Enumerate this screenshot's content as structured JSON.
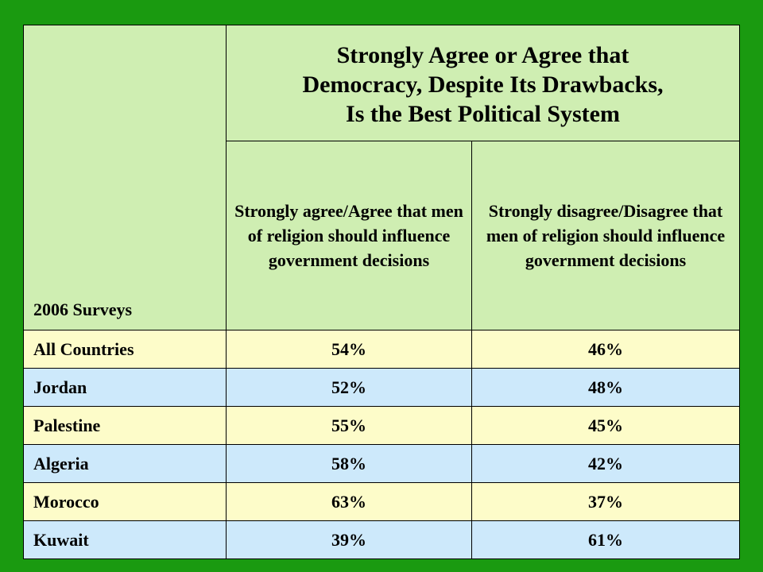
{
  "table": {
    "survey_label": "2006 Surveys",
    "main_title_lines": [
      "Strongly Agree or Agree that",
      "Democracy, Despite Its Drawbacks,",
      "Is the Best Political System"
    ],
    "sub_headers": [
      "Strongly agree/Agree that men of religion should influence government decisions",
      "Strongly disagree/Disagree that men of religion should influence government decisions"
    ],
    "rows": [
      {
        "country": "All Countries",
        "agree": "54%",
        "disagree": "46%"
      },
      {
        "country": "Jordan",
        "agree": "52%",
        "disagree": "48%"
      },
      {
        "country": "Palestine",
        "agree": "55%",
        "disagree": "45%"
      },
      {
        "country": "Algeria",
        "agree": "58%",
        "disagree": "42%"
      },
      {
        "country": "Morocco",
        "agree": "63%",
        "disagree": "37%"
      },
      {
        "country": "Kuwait",
        "agree": "39%",
        "disagree": "61%"
      }
    ]
  },
  "colors": {
    "background": "#1a9a10",
    "header_fill": "#cfeeb2",
    "row_yellow": "#fdfcc9",
    "row_blue": "#cde9fb"
  }
}
